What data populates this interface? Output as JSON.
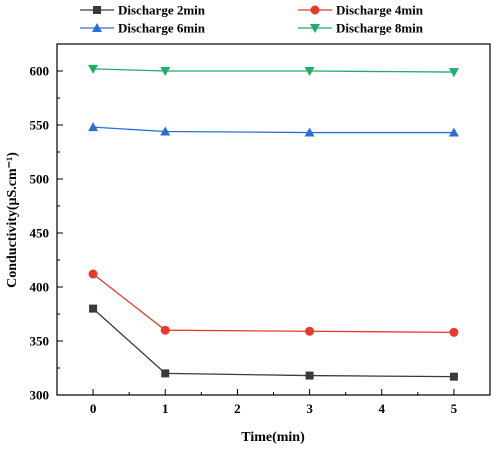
{
  "chart_data": {
    "type": "line",
    "title": "",
    "xlabel": "Time(min)",
    "ylabel": "Conductivity(μS.cm⁻¹)",
    "xlim": [
      -0.5,
      5.5
    ],
    "ylim": [
      300,
      625
    ],
    "xticks": [
      0,
      1,
      2,
      3,
      4,
      5
    ],
    "yticks": [
      300,
      350,
      400,
      450,
      500,
      550,
      600
    ],
    "grid": false,
    "legend_position": "top",
    "series": [
      {
        "name": "Discharge 2min",
        "color": "#3a3a3a",
        "marker": "square",
        "x": [
          0,
          1,
          3,
          5
        ],
        "y": [
          380,
          320,
          318,
          317
        ]
      },
      {
        "name": "Discharge 4min",
        "color": "#e8392d",
        "marker": "circle",
        "x": [
          0,
          1,
          3,
          5
        ],
        "y": [
          412,
          360,
          359,
          358
        ]
      },
      {
        "name": "Discharge 6min",
        "color": "#2a6fd6",
        "marker": "triangle",
        "x": [
          0,
          1,
          3,
          5
        ],
        "y": [
          548,
          544,
          543,
          543
        ]
      },
      {
        "name": "Discharge 8min",
        "color": "#1fae6a",
        "marker": "triangle-down",
        "x": [
          0,
          1,
          3,
          5
        ],
        "y": [
          602,
          600,
          600,
          599
        ]
      }
    ]
  }
}
